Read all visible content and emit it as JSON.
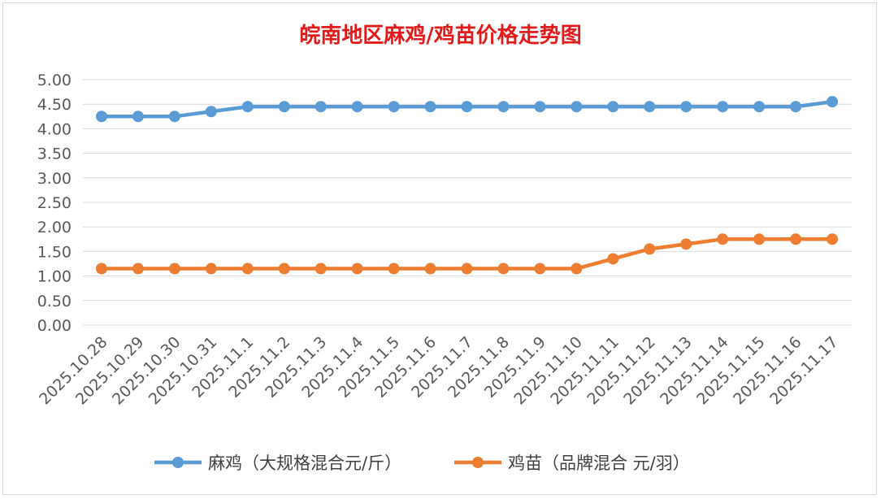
{
  "chart_data": {
    "type": "line",
    "title": "皖南地区麻鸡/鸡苗价格走势图",
    "categories": [
      "2025.10.28",
      "2025.10.29",
      "2025.10.30",
      "2025.10.31",
      "2025.11.1",
      "2025.11.2",
      "2025.11.3",
      "2025.11.4",
      "2025.11.5",
      "2025.11.6",
      "2025.11.7",
      "2025.11.8",
      "2025.11.9",
      "2025.11.10",
      "2025.11.11",
      "2025.11.12",
      "2025.11.13",
      "2025.11.14",
      "2025.11.15",
      "2025.11.16",
      "2025.11.17"
    ],
    "ylim": [
      0,
      5
    ],
    "yticks": [
      "0.00",
      "0.50",
      "1.00",
      "1.50",
      "2.00",
      "2.50",
      "3.00",
      "3.50",
      "4.00",
      "4.50",
      "5.00"
    ],
    "grid": true,
    "legend_position": "bottom",
    "series": [
      {
        "name": "麻鸡（大规格混合元/斤）",
        "color": "#5b9bd5",
        "values": [
          4.25,
          4.25,
          4.25,
          4.35,
          4.45,
          4.45,
          4.45,
          4.45,
          4.45,
          4.45,
          4.45,
          4.45,
          4.45,
          4.45,
          4.45,
          4.45,
          4.45,
          4.45,
          4.45,
          4.45,
          4.55
        ]
      },
      {
        "name": "鸡苗（品牌混合 元/羽）",
        "color": "#ed7d31",
        "values": [
          1.15,
          1.15,
          1.15,
          1.15,
          1.15,
          1.15,
          1.15,
          1.15,
          1.15,
          1.15,
          1.15,
          1.15,
          1.15,
          1.15,
          1.35,
          1.55,
          1.65,
          1.75,
          1.75,
          1.75,
          1.75
        ]
      }
    ]
  }
}
